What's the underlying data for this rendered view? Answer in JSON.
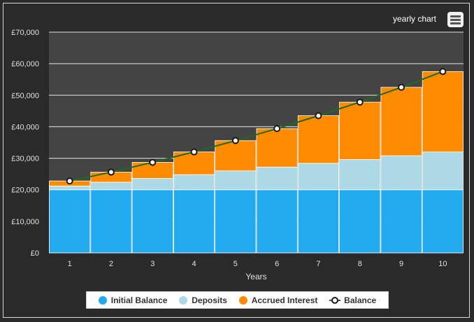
{
  "chart_data": {
    "type": "bar",
    "stacked": true,
    "title": "yearly chart",
    "xlabel": "Years",
    "ylabel": "",
    "categories": [
      "1",
      "2",
      "3",
      "4",
      "5",
      "6",
      "7",
      "8",
      "9",
      "10"
    ],
    "ylim": [
      0,
      70000
    ],
    "yticks": [
      {
        "value": 0,
        "label": "£0"
      },
      {
        "value": 10000,
        "label": "£10,000"
      },
      {
        "value": 20000,
        "label": "£20,000"
      },
      {
        "value": 30000,
        "label": "£30,000"
      },
      {
        "value": 40000,
        "label": "£40,000"
      },
      {
        "value": 50000,
        "label": "£50,000"
      },
      {
        "value": 60000,
        "label": "£60,000"
      },
      {
        "value": 70000,
        "label": "£70,000"
      }
    ],
    "series": [
      {
        "name": "Initial Balance",
        "kind": "bar",
        "color": "#22aaee",
        "values": [
          20000,
          20000,
          20000,
          20000,
          20000,
          20000,
          20000,
          20000,
          20000,
          20000
        ]
      },
      {
        "name": "Deposits",
        "kind": "bar",
        "color": "#add8e6",
        "values": [
          1200,
          2400,
          3600,
          4800,
          6000,
          7200,
          8400,
          9600,
          10800,
          12000
        ]
      },
      {
        "name": "Accrued Interest",
        "kind": "bar",
        "color": "#ff8c00",
        "values": [
          1600,
          3200,
          5100,
          7200,
          9600,
          12200,
          15100,
          18200,
          21700,
          25500
        ]
      },
      {
        "name": "Balance",
        "kind": "line",
        "color": "#1e6b1e",
        "values": [
          22800,
          25600,
          28700,
          32000,
          35600,
          39400,
          43500,
          47800,
          52500,
          57500
        ]
      }
    ],
    "legend_position": "bottom-center",
    "grid": true
  },
  "ui": {
    "menu_icon": "hamburger-menu-icon"
  }
}
